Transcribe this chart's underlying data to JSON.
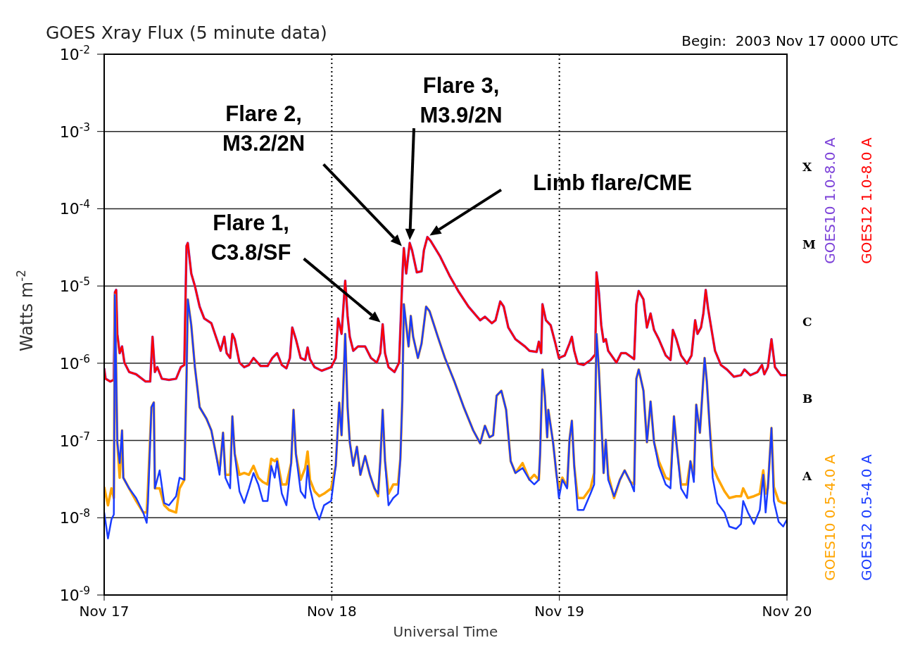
{
  "chart_data": {
    "type": "line",
    "title": "GOES Xray Flux (5 minute data)",
    "subtitle": "Begin:  2003 Nov 17 0000 UTC",
    "xlabel": "Universal Time",
    "ylabel": "Watts m$^{-2}$",
    "xlim": [
      "2003-11-17",
      "2003-11-20"
    ],
    "xticks": [
      {
        "value": "2003-11-17",
        "label": "Nov 17"
      },
      {
        "value": "2003-11-18",
        "label": "Nov 18"
      },
      {
        "value": "2003-11-19",
        "label": "Nov 19"
      },
      {
        "value": "2003-11-20",
        "label": "Nov 20"
      }
    ],
    "ylim": [
      1e-09,
      0.01
    ],
    "yticks": [
      {
        "value": 1e-09,
        "label": "10$^{-9}$"
      },
      {
        "value": 1e-08,
        "label": "10$^{-8}$"
      },
      {
        "value": 1e-07,
        "label": "10$^{-7}$"
      },
      {
        "value": 1e-06,
        "label": "10$^{-6}$"
      },
      {
        "value": 1e-05,
        "label": "10$^{-5}$"
      },
      {
        "value": 0.0001,
        "label": "10$^{-4}$"
      },
      {
        "value": 0.001,
        "label": "10$^{-3}$"
      },
      {
        "value": 0.01,
        "label": "10$^{-2}$"
      }
    ],
    "log": "y",
    "grid": true,
    "legend": "right",
    "annotations": [
      "Flare 1,\nC3.8/SF",
      "Flare 2,\nM3.2/2N",
      "Flare 3,\nM3.9/2N",
      "Limb flare/CME",
      "X",
      "M",
      "C",
      "B",
      "A"
    ],
    "series": [
      {
        "name": "GOES10 1.0-8.0 A",
        "color": "#7b40d8",
        "x": [
          "2003-11-17T00:00",
          "2003-11-17T00:09",
          "2003-11-17T00:38",
          "2003-11-17T01:01",
          "2003-11-17T01:08",
          "2003-11-17T01:16",
          "2003-11-17T01:23",
          "2003-11-17T01:38",
          "2003-11-17T01:53",
          "2003-11-17T02:08",
          "2003-11-17T02:38",
          "2003-11-17T03:22",
          "2003-11-17T04:22",
          "2003-11-17T04:51",
          "2003-11-17T05:06",
          "2003-11-17T05:21",
          "2003-11-17T05:36",
          "2003-11-17T06:05",
          "2003-11-17T06:50",
          "2003-11-17T07:35",
          "2003-11-17T08:05",
          "2003-11-17T08:27",
          "2003-11-17T08:41",
          "2003-11-17T08:49",
          "2003-11-17T09:11",
          "2003-11-17T09:34",
          "2003-11-17T10:04",
          "2003-11-17T10:33",
          "2003-11-17T11:18",
          "2003-11-17T11:47",
          "2003-11-17T12:17",
          "2003-11-17T12:40",
          "2003-11-17T12:55",
          "2003-11-17T13:17",
          "2003-11-17T13:31",
          "2003-11-17T13:46",
          "2003-11-17T14:16",
          "2003-11-17T14:46",
          "2003-11-17T15:16",
          "2003-11-17T15:45",
          "2003-11-17T16:30",
          "2003-11-17T17:14",
          "2003-11-17T17:44",
          "2003-11-17T18:14",
          "2003-11-17T18:44",
          "2003-11-17T19:13",
          "2003-11-17T19:35",
          "2003-11-17T19:50",
          "2003-11-17T20:13",
          "2003-11-17T20:43",
          "2003-11-17T21:12",
          "2003-11-17T21:27",
          "2003-11-17T21:42",
          "2003-11-17T22:11",
          "2003-11-17T22:56",
          "2003-11-17T23:56",
          "2003-11-18T00:25",
          "2003-11-18T00:40",
          "2003-11-18T01:02",
          "2003-11-18T01:25",
          "2003-11-18T01:40",
          "2003-11-18T01:54",
          "2003-11-18T02:16",
          "2003-11-18T02:46",
          "2003-11-18T03:31",
          "2003-11-18T04:08",
          "2003-11-18T04:45",
          "2003-11-18T05:07",
          "2003-11-18T05:22",
          "2003-11-18T05:37",
          "2003-11-18T05:59",
          "2003-11-18T06:37",
          "2003-11-18T07:06",
          "2003-11-18T07:29",
          "2003-11-18T07:36",
          "2003-11-18T07:51",
          "2003-11-18T08:13",
          "2003-11-18T08:28",
          "2003-11-18T08:58",
          "2003-11-18T09:28",
          "2003-11-18T09:43",
          "2003-11-18T10:05",
          "2003-11-18T10:27",
          "2003-11-18T11:26",
          "2003-11-18T12:26",
          "2003-11-18T13:25",
          "2003-11-18T14:25",
          "2003-11-18T15:39",
          "2003-11-18T16:09",
          "2003-11-18T16:53",
          "2003-11-18T17:16",
          "2003-11-18T17:46",
          "2003-11-18T18:08",
          "2003-11-18T18:37",
          "2003-11-18T19:22",
          "2003-11-18T20:22",
          "2003-11-18T20:51",
          "2003-11-18T21:36",
          "2003-11-18T21:50",
          "2003-11-18T22:05",
          "2003-11-18T22:13",
          "2003-11-18T22:35",
          "2003-11-18T23:05",
          "2003-11-18T23:35",
          "2003-11-18T23:57",
          "2003-11-19T00:34",
          "2003-11-19T01:04",
          "2003-11-19T01:19",
          "2003-11-19T01:34",
          "2003-11-19T01:56",
          "2003-11-19T02:33",
          "2003-11-19T03:17",
          "2003-11-19T03:47",
          "2003-11-19T03:55",
          "2003-11-19T04:10",
          "2003-11-19T04:25",
          "2003-11-19T04:40",
          "2003-11-19T04:54",
          "2003-11-19T05:09",
          "2003-11-19T06:01",
          "2003-11-19T06:31",
          "2003-11-19T07:01",
          "2003-11-19T07:53",
          "2003-11-19T08:07",
          "2003-11-19T08:22",
          "2003-11-19T08:52",
          "2003-11-19T09:14",
          "2003-11-19T09:37",
          "2003-11-19T09:59",
          "2003-11-19T10:29",
          "2003-11-19T11:13",
          "2003-11-19T11:43",
          "2003-11-19T11:58",
          "2003-11-19T12:20",
          "2003-11-19T12:50",
          "2003-11-19T13:27",
          "2003-11-19T13:56",
          "2003-11-19T14:19",
          "2003-11-19T14:34",
          "2003-11-19T14:56",
          "2003-11-19T15:11",
          "2003-11-19T15:26",
          "2003-11-19T15:41",
          "2003-11-19T16:03",
          "2003-11-19T16:25",
          "2003-11-19T17:02",
          "2003-11-19T17:40",
          "2003-11-19T18:24",
          "2003-11-19T19:09",
          "2003-11-19T19:31",
          "2003-11-19T20:08",
          "2003-11-19T20:53",
          "2003-11-19T21:22",
          "2003-11-19T21:37",
          "2003-11-19T21:59",
          "2003-11-19T22:22",
          "2003-11-19T22:44",
          "2003-11-19T23:22",
          "2003-11-20T00:00"
        ],
        "values": [
          8.6e-07,
          6.3e-07,
          5.8e-07,
          6.1e-07,
          8.3e-06,
          8.9e-06,
          2.4e-06,
          1.35e-06,
          1.65e-06,
          1.02e-06,
          7.7e-07,
          7.2e-07,
          5.8e-07,
          5.8e-07,
          2.2e-06,
          7.7e-07,
          8.9e-07,
          6.3e-07,
          6.1e-07,
          6.3e-07,
          8.9e-07,
          9.5e-07,
          3.3e-05,
          3.6e-05,
          1.45e-05,
          1e-05,
          5.4e-06,
          3.8e-06,
          3.3e-06,
          2.2e-06,
          1.45e-06,
          2.2e-06,
          1.35e-06,
          1.17e-06,
          2.4e-06,
          2.05e-06,
          1.02e-06,
          8.9e-07,
          9.5e-07,
          1.17e-06,
          9.2e-07,
          9.2e-07,
          1.17e-06,
          1.35e-06,
          9.5e-07,
          8.6e-07,
          1.17e-06,
          2.9e-06,
          2.05e-06,
          1.17e-06,
          1.1e-06,
          1.6e-06,
          1.13e-06,
          8.9e-07,
          8e-07,
          8.9e-07,
          1.17e-06,
          3.8e-06,
          2.4e-06,
          1.17e-05,
          4.1e-06,
          2.2e-06,
          1.45e-06,
          1.65e-06,
          1.65e-06,
          1.17e-06,
          1.02e-06,
          1.35e-06,
          3.2e-06,
          1.35e-06,
          8.9e-07,
          7.7e-07,
          1.02e-06,
          1.7e-05,
          3.1e-05,
          1.45e-05,
          3.6e-05,
          2.9e-05,
          1.5e-05,
          1.55e-05,
          2.9e-05,
          4.3e-05,
          3.8e-05,
          2.4e-05,
          1.35e-05,
          8.3e-06,
          5.4e-06,
          3.6e-06,
          4e-06,
          3.3e-06,
          3.6e-06,
          6.3e-06,
          5.4e-06,
          2.9e-06,
          2.05e-06,
          1.65e-06,
          1.45e-06,
          1.4e-06,
          1.9e-06,
          1.35e-06,
          5.8e-06,
          3.6e-06,
          3.1e-06,
          1.8e-06,
          1.17e-06,
          1.26e-06,
          1.8e-06,
          2.2e-06,
          1.45e-06,
          9.9e-07,
          9.5e-07,
          1.1e-06,
          1.3e-06,
          1.5e-05,
          8.3e-06,
          3.1e-06,
          1.9e-06,
          2.05e-06,
          1.45e-06,
          1.02e-06,
          1.35e-06,
          1.35e-06,
          1.13e-06,
          5.8e-06,
          8.6e-06,
          6.7e-06,
          2.9e-06,
          4.4e-06,
          2.7e-06,
          2.05e-06,
          1.26e-06,
          1.1e-06,
          2.7e-06,
          2.05e-06,
          1.26e-06,
          9.9e-07,
          1.26e-06,
          3.6e-06,
          2.4e-06,
          2.9e-06,
          4.4e-06,
          8.9e-06,
          5.1e-06,
          2.7e-06,
          1.45e-06,
          9.5e-07,
          8.3e-07,
          6.7e-07,
          7e-07,
          8.3e-07,
          7e-07,
          7.7e-07,
          9.5e-07,
          7.2e-07,
          8.9e-07,
          2.05e-06,
          8.9e-07,
          7e-07,
          7e-07
        ]
      },
      {
        "name": "GOES12 1.0-8.0 A",
        "color": "#ff0000",
        "x": [
          "2003-11-17T00:00",
          "2003-11-17T00:09",
          "2003-11-17T00:38",
          "2003-11-17T01:01",
          "2003-11-17T01:08",
          "2003-11-17T01:16",
          "2003-11-17T01:23",
          "2003-11-17T01:38",
          "2003-11-17T01:53",
          "2003-11-17T02:08",
          "2003-11-17T02:38",
          "2003-11-17T03:22",
          "2003-11-17T04:22",
          "2003-11-17T04:51",
          "2003-11-17T05:06",
          "2003-11-17T05:21",
          "2003-11-17T05:36",
          "2003-11-17T06:05",
          "2003-11-17T06:50",
          "2003-11-17T07:35",
          "2003-11-17T08:05",
          "2003-11-17T08:27",
          "2003-11-17T08:41",
          "2003-11-17T08:49",
          "2003-11-17T09:11",
          "2003-11-17T09:34",
          "2003-11-17T10:04",
          "2003-11-17T10:33",
          "2003-11-17T11:18",
          "2003-11-17T11:47",
          "2003-11-17T12:17",
          "2003-11-17T12:40",
          "2003-11-17T12:55",
          "2003-11-17T13:17",
          "2003-11-17T13:31",
          "2003-11-17T13:46",
          "2003-11-17T14:16",
          "2003-11-17T14:46",
          "2003-11-17T15:16",
          "2003-11-17T15:45",
          "2003-11-17T16:30",
          "2003-11-17T17:14",
          "2003-11-17T17:44",
          "2003-11-17T18:14",
          "2003-11-17T18:44",
          "2003-11-17T19:13",
          "2003-11-17T19:35",
          "2003-11-17T19:50",
          "2003-11-17T20:13",
          "2003-11-17T20:43",
          "2003-11-17T21:12",
          "2003-11-17T21:27",
          "2003-11-17T21:42",
          "2003-11-17T22:11",
          "2003-11-17T22:56",
          "2003-11-17T23:56",
          "2003-11-18T00:25",
          "2003-11-18T00:40",
          "2003-11-18T01:02",
          "2003-11-18T01:25",
          "2003-11-18T01:40",
          "2003-11-18T01:54",
          "2003-11-18T02:16",
          "2003-11-18T02:46",
          "2003-11-18T03:31",
          "2003-11-18T04:08",
          "2003-11-18T04:45",
          "2003-11-18T05:07",
          "2003-11-18T05:22",
          "2003-11-18T05:37",
          "2003-11-18T05:59",
          "2003-11-18T06:37",
          "2003-11-18T07:06",
          "2003-11-18T07:29",
          "2003-11-18T07:36",
          "2003-11-18T07:51",
          "2003-11-18T08:13",
          "2003-11-18T08:28",
          "2003-11-18T08:58",
          "2003-11-18T09:28",
          "2003-11-18T09:43",
          "2003-11-18T10:05",
          "2003-11-18T10:27",
          "2003-11-18T11:26",
          "2003-11-18T12:26",
          "2003-11-18T13:25",
          "2003-11-18T14:25",
          "2003-11-18T15:39",
          "2003-11-18T16:09",
          "2003-11-18T16:53",
          "2003-11-18T17:16",
          "2003-11-18T17:46",
          "2003-11-18T18:08",
          "2003-11-18T18:37",
          "2003-11-18T19:22",
          "2003-11-18T20:22",
          "2003-11-18T20:51",
          "2003-11-18T21:36",
          "2003-11-18T21:50",
          "2003-11-18T22:05",
          "2003-11-18T22:13",
          "2003-11-18T22:35",
          "2003-11-18T23:05",
          "2003-11-18T23:35",
          "2003-11-18T23:57",
          "2003-11-19T00:34",
          "2003-11-19T01:04",
          "2003-11-19T01:19",
          "2003-11-19T01:34",
          "2003-11-19T01:56",
          "2003-11-19T02:33",
          "2003-11-19T03:17",
          "2003-11-19T03:47",
          "2003-11-19T03:55",
          "2003-11-19T04:10",
          "2003-11-19T04:25",
          "2003-11-19T04:40",
          "2003-11-19T04:54",
          "2003-11-19T05:09",
          "2003-11-19T06:01",
          "2003-11-19T06:31",
          "2003-11-19T07:01",
          "2003-11-19T07:53",
          "2003-11-19T08:07",
          "2003-11-19T08:22",
          "2003-11-19T08:52",
          "2003-11-19T09:14",
          "2003-11-19T09:37",
          "2003-11-19T09:59",
          "2003-11-19T10:29",
          "2003-11-19T11:13",
          "2003-11-19T11:43",
          "2003-11-19T11:58",
          "2003-11-19T12:20",
          "2003-11-19T12:50",
          "2003-11-19T13:27",
          "2003-11-19T13:56",
          "2003-11-19T14:19",
          "2003-11-19T14:34",
          "2003-11-19T14:56",
          "2003-11-19T15:11",
          "2003-11-19T15:26",
          "2003-11-19T15:41",
          "2003-11-19T16:03",
          "2003-11-19T16:25",
          "2003-11-19T17:02",
          "2003-11-19T17:40",
          "2003-11-19T18:24",
          "2003-11-19T19:09",
          "2003-11-19T19:31",
          "2003-11-19T20:08",
          "2003-11-19T20:53",
          "2003-11-19T21:22",
          "2003-11-19T21:37",
          "2003-11-19T21:59",
          "2003-11-19T22:22",
          "2003-11-19T22:44",
          "2003-11-19T23:22",
          "2003-11-20T00:00"
        ],
        "values": [
          8.6e-07,
          6.3e-07,
          5.8e-07,
          6.1e-07,
          8.3e-06,
          8.9e-06,
          2.4e-06,
          1.35e-06,
          1.65e-06,
          1.02e-06,
          7.7e-07,
          7.2e-07,
          5.8e-07,
          5.8e-07,
          2.2e-06,
          7.7e-07,
          8.9e-07,
          6.3e-07,
          6.1e-07,
          6.3e-07,
          8.9e-07,
          9.5e-07,
          3.3e-05,
          3.6e-05,
          1.45e-05,
          1e-05,
          5.4e-06,
          3.8e-06,
          3.3e-06,
          2.2e-06,
          1.45e-06,
          2.2e-06,
          1.35e-06,
          1.17e-06,
          2.4e-06,
          2.05e-06,
          1.02e-06,
          8.9e-07,
          9.5e-07,
          1.17e-06,
          9.2e-07,
          9.2e-07,
          1.17e-06,
          1.35e-06,
          9.5e-07,
          8.6e-07,
          1.17e-06,
          2.9e-06,
          2.05e-06,
          1.17e-06,
          1.1e-06,
          1.6e-06,
          1.13e-06,
          8.9e-07,
          8e-07,
          8.9e-07,
          1.17e-06,
          3.8e-06,
          2.4e-06,
          1.17e-05,
          4.1e-06,
          2.2e-06,
          1.45e-06,
          1.65e-06,
          1.65e-06,
          1.17e-06,
          1.02e-06,
          1.35e-06,
          3.2e-06,
          1.35e-06,
          8.9e-07,
          7.7e-07,
          1.02e-06,
          1.7e-05,
          3.1e-05,
          1.45e-05,
          3.6e-05,
          2.9e-05,
          1.5e-05,
          1.55e-05,
          2.9e-05,
          4.3e-05,
          3.8e-05,
          2.4e-05,
          1.35e-05,
          8.3e-06,
          5.4e-06,
          3.6e-06,
          4e-06,
          3.3e-06,
          3.6e-06,
          6.3e-06,
          5.4e-06,
          2.9e-06,
          2.05e-06,
          1.65e-06,
          1.45e-06,
          1.4e-06,
          1.9e-06,
          1.35e-06,
          5.8e-06,
          3.6e-06,
          3.1e-06,
          1.8e-06,
          1.17e-06,
          1.26e-06,
          1.8e-06,
          2.2e-06,
          1.45e-06,
          9.9e-07,
          9.5e-07,
          1.1e-06,
          1.3e-06,
          1.5e-05,
          8.3e-06,
          3.1e-06,
          1.9e-06,
          2.05e-06,
          1.45e-06,
          1.02e-06,
          1.35e-06,
          1.35e-06,
          1.13e-06,
          5.8e-06,
          8.6e-06,
          6.7e-06,
          2.9e-06,
          4.4e-06,
          2.7e-06,
          2.05e-06,
          1.26e-06,
          1.1e-06,
          2.7e-06,
          2.05e-06,
          1.26e-06,
          9.9e-07,
          1.26e-06,
          3.6e-06,
          2.4e-06,
          2.9e-06,
          4.4e-06,
          8.9e-06,
          5.1e-06,
          2.7e-06,
          1.45e-06,
          9.5e-07,
          8.3e-07,
          6.7e-07,
          7e-07,
          8.3e-07,
          7e-07,
          7.7e-07,
          9.5e-07,
          7.2e-07,
          8.9e-07,
          2.05e-06,
          8.9e-07,
          7e-07,
          7e-07
        ]
      },
      {
        "name": "GOES10 0.5-4.0 A",
        "color": "#ffa500",
        "x": [
          "2003-11-17T00:00",
          "2003-11-17T00:24",
          "2003-11-17T00:46",
          "2003-11-17T01:01",
          "2003-11-17T01:08",
          "2003-11-17T01:23",
          "2003-11-17T01:38",
          "2003-11-17T01:53",
          "2003-11-17T02:01",
          "2003-11-17T02:38",
          "2003-11-17T03:22",
          "2003-11-17T04:07",
          "2003-11-17T04:29",
          "2003-11-17T04:37",
          "2003-11-17T04:59",
          "2003-11-17T05:14",
          "2003-11-17T05:21",
          "2003-11-17T05:51",
          "2003-11-17T06:20",
          "2003-11-17T06:50",
          "2003-11-17T07:35",
          "2003-11-17T07:57",
          "2003-11-17T08:27",
          "2003-11-17T08:41",
          "2003-11-17T08:49",
          "2003-11-17T09:11",
          "2003-11-17T09:34",
          "2003-11-17T10:04",
          "2003-11-17T10:48",
          "2003-11-17T11:18",
          "2003-11-17T11:47",
          "2003-11-17T12:10",
          "2003-11-17T12:32",
          "2003-11-17T12:47",
          "2003-11-17T13:17",
          "2003-11-17T13:31",
          "2003-11-17T13:46",
          "2003-11-17T14:16",
          "2003-11-17T14:46",
          "2003-11-17T15:16",
          "2003-11-17T15:45",
          "2003-11-17T16:15",
          "2003-11-17T16:44",
          "2003-11-17T17:14",
          "2003-11-17T17:37",
          "2003-11-17T17:59",
          "2003-11-17T18:14",
          "2003-11-17T18:44",
          "2003-11-17T19:13",
          "2003-11-17T19:43",
          "2003-11-17T19:58",
          "2003-11-17T20:13",
          "2003-11-17T20:43",
          "2003-11-17T21:12",
          "2003-11-17T21:27",
          "2003-11-17T21:42",
          "2003-11-17T22:11",
          "2003-11-17T22:41",
          "2003-11-17T23:11",
          "2003-11-17T23:56",
          "2003-11-18T00:25",
          "2003-11-18T00:47",
          "2003-11-18T01:02",
          "2003-11-18T01:25",
          "2003-11-18T01:40",
          "2003-11-18T01:54",
          "2003-11-18T02:16",
          "2003-11-18T02:39",
          "2003-11-18T03:01",
          "2003-11-18T03:31",
          "2003-11-18T04:01",
          "2003-11-18T04:30",
          "2003-11-18T04:53",
          "2003-11-18T05:07",
          "2003-11-18T05:22",
          "2003-11-18T05:37",
          "2003-11-18T05:59",
          "2003-11-18T06:29",
          "2003-11-18T06:59",
          "2003-11-18T07:14",
          "2003-11-18T07:26",
          "2003-11-18T07:36",
          "2003-11-18T07:51",
          "2003-11-18T08:06",
          "2003-11-18T08:20",
          "2003-11-18T08:35",
          "2003-11-18T09:05",
          "2003-11-18T09:28",
          "2003-11-18T09:57",
          "2003-11-18T10:19",
          "2003-11-18T11:11",
          "2003-11-18T11:56",
          "2003-11-18T12:56",
          "2003-11-18T13:55",
          "2003-11-18T14:55",
          "2003-11-18T15:39",
          "2003-11-18T16:09",
          "2003-11-18T16:38",
          "2003-11-18T17:01",
          "2003-11-18T17:23",
          "2003-11-18T17:53",
          "2003-11-18T18:23",
          "2003-11-18T18:52",
          "2003-11-18T19:22",
          "2003-11-18T20:07",
          "2003-11-18T20:51",
          "2003-11-18T21:21",
          "2003-11-18T21:50",
          "2003-11-18T21:58",
          "2003-11-18T22:13",
          "2003-11-18T22:28",
          "2003-11-18T22:43",
          "2003-11-18T22:50",
          "2003-11-18T23:20",
          "2003-11-18T23:42",
          "2003-11-18T23:57",
          "2003-11-19T00:19",
          "2003-11-19T00:49",
          "2003-11-19T01:04",
          "2003-11-19T01:19",
          "2003-11-19T01:34",
          "2003-11-19T01:56",
          "2003-11-19T02:33",
          "2003-11-19T03:17",
          "2003-11-19T03:40",
          "2003-11-19T03:55",
          "2003-11-19T04:10",
          "2003-11-19T04:25",
          "2003-11-19T04:40",
          "2003-11-19T04:54",
          "2003-11-19T05:09",
          "2003-11-19T05:46",
          "2003-11-19T06:23",
          "2003-11-19T06:53",
          "2003-11-19T07:30",
          "2003-11-19T07:53",
          "2003-11-19T08:07",
          "2003-11-19T08:22",
          "2003-11-19T08:52",
          "2003-11-19T09:14",
          "2003-11-19T09:37",
          "2003-11-19T09:59",
          "2003-11-19T10:29",
          "2003-11-19T11:13",
          "2003-11-19T11:43",
          "2003-11-19T12:05",
          "2003-11-19T12:20",
          "2003-11-19T12:50",
          "2003-11-19T13:27",
          "2003-11-19T13:49",
          "2003-11-19T14:11",
          "2003-11-19T14:26",
          "2003-11-19T14:49",
          "2003-11-19T15:04",
          "2003-11-19T15:19",
          "2003-11-19T15:33",
          "2003-11-19T15:48",
          "2003-11-19T16:10",
          "2003-11-19T16:40",
          "2003-11-19T17:25",
          "2003-11-19T17:55",
          "2003-11-19T18:39",
          "2003-11-19T19:09",
          "2003-11-19T19:23",
          "2003-11-19T19:53",
          "2003-11-19T20:31",
          "2003-11-19T21:08",
          "2003-11-19T21:30",
          "2003-11-19T21:45",
          "2003-11-19T21:59",
          "2003-11-19T22:22",
          "2003-11-19T22:37",
          "2003-11-19T23:07",
          "2003-11-19T23:36",
          "2003-11-20T00:00"
        ],
        "values": [
          2.5e-08,
          1.45e-08,
          2.4e-08,
          1.8e-08,
          7.7e-06,
          9.5e-08,
          3.3e-08,
          1.35e-07,
          3.3e-08,
          2.4e-08,
          1.65e-08,
          1.17e-08,
          1.17e-08,
          2.4e-08,
          2.7e-07,
          3.1e-07,
          2.4e-08,
          2.4e-08,
          1.45e-08,
          1.26e-08,
          1.17e-08,
          2.4e-08,
          3.1e-08,
          6.3e-07,
          6.7e-06,
          3.1e-06,
          8.9e-07,
          2.7e-07,
          1.9e-07,
          1.35e-07,
          6.7e-08,
          4.1e-08,
          1.26e-07,
          3.6e-08,
          3.6e-08,
          2.05e-07,
          6.7e-08,
          3.6e-08,
          3.8e-08,
          3.6e-08,
          4.7e-08,
          3.3e-08,
          2.9e-08,
          2.7e-08,
          5.8e-08,
          5.4e-08,
          5.8e-08,
          2.7e-08,
          2.7e-08,
          5.1e-08,
          2.5e-07,
          6.7e-08,
          3.1e-08,
          4.4e-08,
          7.2e-08,
          3.1e-08,
          2.2e-08,
          1.9e-08,
          2.05e-08,
          2.4e-08,
          4.7e-08,
          3.1e-07,
          1.17e-07,
          2.4e-06,
          2.7e-07,
          9.5e-08,
          4.7e-08,
          8.3e-08,
          3.6e-08,
          6.3e-08,
          3.6e-08,
          2.4e-08,
          1.9e-08,
          5.4e-08,
          2.5e-07,
          5.4e-08,
          2.05e-08,
          2.7e-08,
          2.7e-08,
          5.8e-08,
          3.3e-07,
          5.8e-06,
          3.1e-06,
          1.65e-06,
          4.1e-06,
          2.2e-06,
          1.17e-06,
          1.8e-06,
          5.4e-06,
          4.7e-06,
          2.2e-06,
          1.17e-06,
          5.8e-07,
          2.7e-07,
          1.35e-07,
          9.2e-08,
          1.55e-07,
          1.1e-07,
          1.17e-07,
          3.8e-07,
          4.4e-07,
          2.5e-07,
          5.4e-08,
          3.8e-08,
          5.1e-08,
          3.1e-08,
          3.6e-08,
          3.1e-08,
          6.7e-08,
          8.3e-07,
          3.8e-07,
          1.1e-07,
          2.5e-07,
          9.5e-08,
          3.6e-08,
          2.4e-08,
          3.3e-08,
          2.5e-08,
          1.02e-07,
          1.8e-07,
          4.7e-08,
          1.8e-08,
          1.8e-08,
          2.4e-08,
          3.8e-08,
          2.4e-06,
          8.3e-07,
          1.9e-07,
          3.8e-08,
          1.02e-07,
          3.6e-08,
          1.8e-08,
          3.1e-08,
          4.1e-08,
          2.9e-08,
          2.7e-08,
          6.3e-07,
          8.3e-07,
          4.4e-07,
          9.5e-08,
          3.2e-07,
          9.5e-08,
          5.4e-08,
          3.3e-08,
          3.1e-08,
          2.05e-07,
          9.5e-08,
          2.7e-08,
          2.7e-08,
          5.4e-08,
          3.6e-08,
          2.9e-07,
          1.26e-07,
          3.8e-07,
          1.17e-06,
          5.8e-07,
          1.9e-07,
          4.7e-08,
          3.3e-08,
          2.2e-08,
          1.8e-08,
          1.9e-08,
          1.9e-08,
          2.4e-08,
          1.8e-08,
          1.9e-08,
          2.05e-08,
          4.1e-08,
          2.05e-08,
          2.4e-08,
          1.45e-07,
          2.5e-08,
          1.65e-08,
          1.55e-08,
          1.55e-08
        ]
      },
      {
        "name": "GOES12 0.5-4.0 A",
        "color": "#1a3cff",
        "x": [
          "2003-11-17T00:00",
          "2003-11-17T00:24",
          "2003-11-17T00:46",
          "2003-11-17T01:01",
          "2003-11-17T01:08",
          "2003-11-17T01:23",
          "2003-11-17T01:38",
          "2003-11-17T01:53",
          "2003-11-17T02:01",
          "2003-11-17T02:38",
          "2003-11-17T03:22",
          "2003-11-17T04:07",
          "2003-11-17T04:29",
          "2003-11-17T04:37",
          "2003-11-17T04:59",
          "2003-11-17T05:14",
          "2003-11-17T05:21",
          "2003-11-17T05:51",
          "2003-11-17T06:20",
          "2003-11-17T06:50",
          "2003-11-17T07:35",
          "2003-11-17T07:57",
          "2003-11-17T08:27",
          "2003-11-17T08:41",
          "2003-11-17T08:49",
          "2003-11-17T09:11",
          "2003-11-17T09:34",
          "2003-11-17T10:04",
          "2003-11-17T10:48",
          "2003-11-17T11:18",
          "2003-11-17T11:47",
          "2003-11-17T12:10",
          "2003-11-17T12:32",
          "2003-11-17T12:47",
          "2003-11-17T13:17",
          "2003-11-17T13:31",
          "2003-11-17T13:46",
          "2003-11-17T14:16",
          "2003-11-17T14:46",
          "2003-11-17T15:16",
          "2003-11-17T15:45",
          "2003-11-17T16:15",
          "2003-11-17T16:44",
          "2003-11-17T17:14",
          "2003-11-17T17:37",
          "2003-11-17T17:59",
          "2003-11-17T18:14",
          "2003-11-17T18:44",
          "2003-11-17T19:13",
          "2003-11-17T19:43",
          "2003-11-17T19:58",
          "2003-11-17T20:13",
          "2003-11-17T20:43",
          "2003-11-17T21:12",
          "2003-11-17T21:27",
          "2003-11-17T21:42",
          "2003-11-17T22:11",
          "2003-11-17T22:41",
          "2003-11-17T23:11",
          "2003-11-17T23:56",
          "2003-11-18T00:25",
          "2003-11-18T00:47",
          "2003-11-18T01:02",
          "2003-11-18T01:25",
          "2003-11-18T01:40",
          "2003-11-18T01:54",
          "2003-11-18T02:16",
          "2003-11-18T02:39",
          "2003-11-18T03:01",
          "2003-11-18T03:31",
          "2003-11-18T04:01",
          "2003-11-18T04:30",
          "2003-11-18T04:53",
          "2003-11-18T05:07",
          "2003-11-18T05:22",
          "2003-11-18T05:37",
          "2003-11-18T05:59",
          "2003-11-18T06:29",
          "2003-11-18T06:59",
          "2003-11-18T07:14",
          "2003-11-18T07:26",
          "2003-11-18T07:36",
          "2003-11-18T07:51",
          "2003-11-18T08:06",
          "2003-11-18T08:20",
          "2003-11-18T08:35",
          "2003-11-18T09:05",
          "2003-11-18T09:28",
          "2003-11-18T09:57",
          "2003-11-18T10:19",
          "2003-11-18T11:11",
          "2003-11-18T11:56",
          "2003-11-18T12:56",
          "2003-11-18T13:55",
          "2003-11-18T14:55",
          "2003-11-18T15:39",
          "2003-11-18T16:09",
          "2003-11-18T16:38",
          "2003-11-18T17:01",
          "2003-11-18T17:23",
          "2003-11-18T17:53",
          "2003-11-18T18:23",
          "2003-11-18T18:52",
          "2003-11-18T19:22",
          "2003-11-18T20:07",
          "2003-11-18T20:51",
          "2003-11-18T21:21",
          "2003-11-18T21:50",
          "2003-11-18T21:58",
          "2003-11-18T22:13",
          "2003-11-18T22:28",
          "2003-11-18T22:43",
          "2003-11-18T22:50",
          "2003-11-18T23:20",
          "2003-11-18T23:42",
          "2003-11-18T23:57",
          "2003-11-19T00:19",
          "2003-11-19T00:49",
          "2003-11-19T01:04",
          "2003-11-19T01:19",
          "2003-11-19T01:34",
          "2003-11-19T01:56",
          "2003-11-19T02:33",
          "2003-11-19T03:17",
          "2003-11-19T03:40",
          "2003-11-19T03:55",
          "2003-11-19T04:10",
          "2003-11-19T04:25",
          "2003-11-19T04:40",
          "2003-11-19T04:54",
          "2003-11-19T05:09",
          "2003-11-19T05:46",
          "2003-11-19T06:23",
          "2003-11-19T06:53",
          "2003-11-19T07:30",
          "2003-11-19T07:53",
          "2003-11-19T08:07",
          "2003-11-19T08:22",
          "2003-11-19T08:52",
          "2003-11-19T09:14",
          "2003-11-19T09:37",
          "2003-11-19T09:59",
          "2003-11-19T10:29",
          "2003-11-19T11:13",
          "2003-11-19T11:43",
          "2003-11-19T12:05",
          "2003-11-19T12:20",
          "2003-11-19T12:50",
          "2003-11-19T13:27",
          "2003-11-19T13:49",
          "2003-11-19T14:11",
          "2003-11-19T14:26",
          "2003-11-19T14:49",
          "2003-11-19T15:04",
          "2003-11-19T15:19",
          "2003-11-19T15:33",
          "2003-11-19T15:48",
          "2003-11-19T16:10",
          "2003-11-19T16:40",
          "2003-11-19T17:25",
          "2003-11-19T17:55",
          "2003-11-19T18:39",
          "2003-11-19T19:09",
          "2003-11-19T19:23",
          "2003-11-19T19:53",
          "2003-11-19T20:31",
          "2003-11-19T21:08",
          "2003-11-19T21:30",
          "2003-11-19T21:45",
          "2003-11-19T21:59",
          "2003-11-19T22:22",
          "2003-11-19T22:37",
          "2003-11-19T23:07",
          "2003-11-19T23:36",
          "2003-11-20T00:00"
        ],
        "values": [
          1.17e-08,
          5.4e-09,
          9.5e-09,
          1.1e-08,
          7.7e-06,
          9.5e-08,
          5.1e-08,
          1.35e-07,
          3.3e-08,
          2.4e-08,
          1.8e-08,
          1.17e-08,
          8.6e-09,
          1.55e-08,
          2.7e-07,
          3.1e-07,
          2.4e-08,
          4.1e-08,
          1.55e-08,
          1.45e-08,
          1.9e-08,
          3.3e-08,
          3.1e-08,
          6.3e-07,
          6.7e-06,
          3.1e-06,
          8.9e-07,
          2.7e-07,
          1.9e-07,
          1.35e-07,
          6.7e-08,
          3.6e-08,
          1.26e-07,
          3.3e-08,
          2.4e-08,
          2.05e-07,
          6.7e-08,
          2.2e-08,
          1.55e-08,
          2.4e-08,
          3.8e-08,
          2.7e-08,
          1.65e-08,
          1.65e-08,
          4.7e-08,
          3.3e-08,
          5.4e-08,
          2.05e-08,
          1.45e-08,
          5.1e-08,
          2.5e-07,
          6.7e-08,
          2.2e-08,
          1.8e-08,
          4.7e-08,
          2.4e-08,
          1.35e-08,
          9.5e-09,
          1.45e-08,
          1.65e-08,
          4.7e-08,
          3.1e-07,
          1.17e-07,
          2.4e-06,
          2.7e-07,
          9.5e-08,
          4.7e-08,
          8.3e-08,
          3.6e-08,
          6.3e-08,
          3.6e-08,
          2.4e-08,
          2.05e-08,
          5.4e-08,
          2.5e-07,
          5.4e-08,
          1.45e-08,
          1.8e-08,
          2.05e-08,
          5.8e-08,
          3.3e-07,
          5.8e-06,
          3.1e-06,
          1.65e-06,
          4.1e-06,
          2.2e-06,
          1.17e-06,
          1.8e-06,
          5.4e-06,
          4.7e-06,
          2.2e-06,
          1.17e-06,
          5.8e-07,
          2.7e-07,
          1.35e-07,
          9.2e-08,
          1.55e-07,
          1.1e-07,
          1.17e-07,
          3.8e-07,
          4.4e-07,
          2.5e-07,
          5.4e-08,
          3.8e-08,
          4.4e-08,
          3.1e-08,
          2.7e-08,
          3.1e-08,
          6.7e-08,
          8.3e-07,
          3.8e-07,
          1.1e-07,
          2.5e-07,
          9.5e-08,
          3.6e-08,
          1.8e-08,
          3.1e-08,
          2.4e-08,
          1.02e-07,
          1.8e-07,
          4.7e-08,
          1.26e-08,
          1.26e-08,
          2.05e-08,
          2.7e-08,
          2.4e-06,
          8.3e-07,
          1.9e-07,
          3.8e-08,
          1.02e-07,
          3.1e-08,
          1.9e-08,
          3.1e-08,
          4.1e-08,
          2.9e-08,
          2.2e-08,
          6.3e-07,
          8.3e-07,
          4.4e-07,
          9.5e-08,
          3.2e-07,
          9.5e-08,
          4.7e-08,
          2.7e-08,
          2.4e-08,
          2.05e-07,
          9.5e-08,
          2.4e-08,
          1.8e-08,
          5.4e-08,
          2.9e-08,
          2.9e-07,
          1.26e-07,
          3.8e-07,
          1.17e-06,
          5.8e-07,
          1.9e-07,
          3.3e-08,
          1.55e-08,
          1.17e-08,
          7.7e-09,
          7.2e-09,
          8.3e-09,
          1.65e-08,
          1.17e-08,
          8.3e-09,
          1.26e-08,
          3.6e-08,
          1.17e-08,
          2.4e-08,
          1.45e-07,
          1.65e-08,
          8.9e-09,
          7.7e-09,
          9.5e-09
        ]
      }
    ]
  }
}
